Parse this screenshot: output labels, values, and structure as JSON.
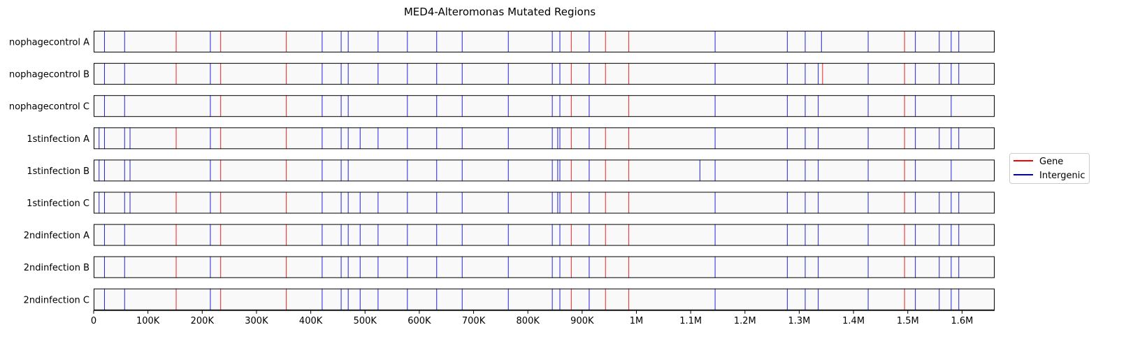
{
  "chart_data": {
    "type": "event-track",
    "title": "MED4-Alteromonas Mutated Regions",
    "xlabel": "",
    "ylabel": "",
    "xlim": [
      0,
      1660000
    ],
    "x_ticks": [
      0,
      100000,
      200000,
      300000,
      400000,
      500000,
      600000,
      700000,
      800000,
      900000,
      1000000,
      1100000,
      1200000,
      1300000,
      1400000,
      1500000,
      1600000
    ],
    "x_tick_labels": [
      "0",
      "100K",
      "200K",
      "300K",
      "400K",
      "500K",
      "600K",
      "700K",
      "800K",
      "900K",
      "1M",
      "1.1M",
      "1.2M",
      "1.3M",
      "1.4M",
      "1.5M",
      "1.6M"
    ],
    "legend": {
      "position": "right",
      "entries": [
        {
          "label": "Gene",
          "color": "#ff0000"
        },
        {
          "label": "Intergenic",
          "color": "#0000cc"
        }
      ]
    },
    "colors": {
      "gene": "#ee2222",
      "intergenic": "#2222dd",
      "track_fill": "#f9f9f9"
    },
    "rows": [
      {
        "name": "nophagecontrol A",
        "gene": [
          152000,
          234000,
          355000,
          880000,
          943000,
          986000,
          1494000
        ],
        "intergenic": [
          20000,
          57000,
          215000,
          421000,
          456000,
          469000,
          524000,
          578000,
          632000,
          679000,
          764000,
          845000,
          859000,
          913000,
          1145000,
          1278000,
          1311000,
          1341000,
          1427000,
          1514000,
          1558000,
          1580000,
          1594000
        ]
      },
      {
        "name": "nophagecontrol B",
        "gene": [
          152000,
          234000,
          355000,
          880000,
          943000,
          986000,
          1343000,
          1494000
        ],
        "intergenic": [
          20000,
          57000,
          215000,
          421000,
          456000,
          469000,
          524000,
          578000,
          632000,
          679000,
          764000,
          845000,
          859000,
          913000,
          1145000,
          1278000,
          1311000,
          1335000,
          1427000,
          1514000,
          1558000,
          1580000,
          1594000
        ]
      },
      {
        "name": "nophagecontrol C",
        "gene": [
          234000,
          355000,
          880000,
          986000,
          1494000
        ],
        "intergenic": [
          20000,
          57000,
          215000,
          421000,
          456000,
          469000,
          578000,
          632000,
          679000,
          764000,
          845000,
          859000,
          913000,
          1145000,
          1278000,
          1311000,
          1335000,
          1427000,
          1514000,
          1580000
        ]
      },
      {
        "name": "1stinfection A",
        "gene": [
          152000,
          234000,
          355000,
          880000,
          943000,
          986000,
          1494000
        ],
        "intergenic": [
          10000,
          20000,
          57000,
          67000,
          215000,
          421000,
          456000,
          469000,
          491000,
          524000,
          578000,
          632000,
          679000,
          764000,
          845000,
          855000,
          859000,
          913000,
          1145000,
          1278000,
          1311000,
          1335000,
          1427000,
          1514000,
          1558000,
          1580000,
          1594000
        ]
      },
      {
        "name": "1stinfection B",
        "gene": [
          234000,
          355000,
          880000,
          943000,
          986000,
          1494000
        ],
        "intergenic": [
          10000,
          20000,
          57000,
          67000,
          215000,
          421000,
          456000,
          469000,
          578000,
          632000,
          679000,
          764000,
          845000,
          855000,
          859000,
          913000,
          1117000,
          1145000,
          1278000,
          1311000,
          1335000,
          1427000,
          1514000,
          1580000
        ]
      },
      {
        "name": "1stinfection C",
        "gene": [
          152000,
          234000,
          355000,
          880000,
          943000,
          986000,
          1494000
        ],
        "intergenic": [
          10000,
          20000,
          57000,
          67000,
          215000,
          421000,
          456000,
          469000,
          491000,
          524000,
          578000,
          632000,
          679000,
          764000,
          845000,
          855000,
          859000,
          913000,
          1145000,
          1278000,
          1311000,
          1335000,
          1427000,
          1514000,
          1558000,
          1580000,
          1594000
        ]
      },
      {
        "name": "2ndinfection A",
        "gene": [
          152000,
          234000,
          355000,
          880000,
          943000,
          986000,
          1494000
        ],
        "intergenic": [
          20000,
          57000,
          215000,
          421000,
          456000,
          469000,
          491000,
          524000,
          578000,
          632000,
          679000,
          764000,
          845000,
          859000,
          913000,
          1145000,
          1278000,
          1311000,
          1335000,
          1427000,
          1514000,
          1558000,
          1580000,
          1594000
        ]
      },
      {
        "name": "2ndinfection B",
        "gene": [
          152000,
          234000,
          355000,
          880000,
          943000,
          986000,
          1494000
        ],
        "intergenic": [
          20000,
          57000,
          215000,
          421000,
          456000,
          469000,
          491000,
          524000,
          578000,
          632000,
          679000,
          764000,
          845000,
          859000,
          913000,
          1145000,
          1278000,
          1311000,
          1335000,
          1427000,
          1514000,
          1558000,
          1580000,
          1594000
        ]
      },
      {
        "name": "2ndinfection C",
        "gene": [
          152000,
          234000,
          355000,
          880000,
          943000,
          986000,
          1494000
        ],
        "intergenic": [
          20000,
          57000,
          215000,
          421000,
          456000,
          469000,
          491000,
          524000,
          578000,
          632000,
          679000,
          764000,
          845000,
          859000,
          913000,
          1145000,
          1278000,
          1311000,
          1335000,
          1427000,
          1514000,
          1558000,
          1580000,
          1594000
        ]
      }
    ]
  }
}
